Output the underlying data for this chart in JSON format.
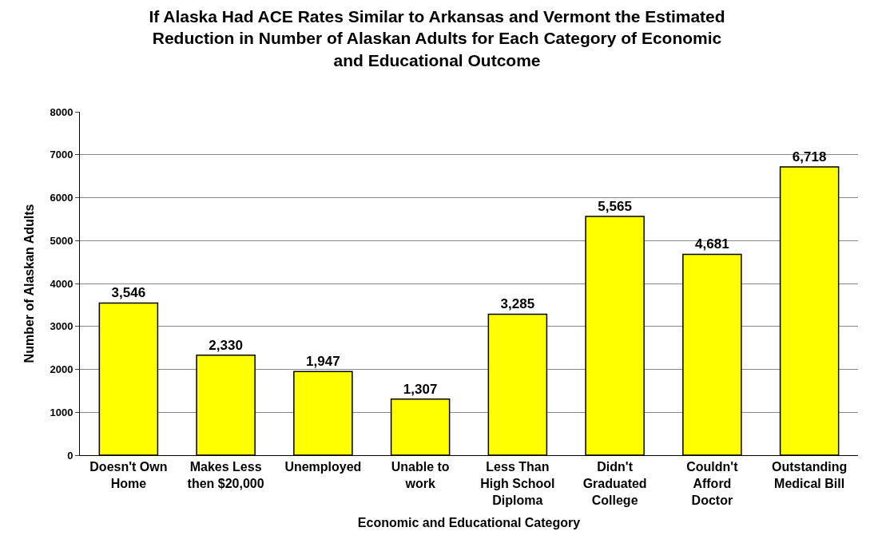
{
  "chart_data": {
    "type": "bar",
    "title": "If Alaska Had ACE Rates Similar to Arkansas and Vermont the Estimated Reduction in Number of Alaskan Adults for Each Category of Economic and Educational Outcome",
    "xlabel": "Economic and Educational Category",
    "ylabel": "Number of Alaskan Adults",
    "categories": [
      "Doesn't Own Home",
      "Makes Less then $20,000",
      "Unemployed",
      "Unable to work",
      "Less Than High School Diploma",
      "Didn't Graduated College",
      "Couldn't Afford Doctor",
      "Outstanding Medical Bill"
    ],
    "values": [
      3546,
      2330,
      1947,
      1307,
      3285,
      5565,
      4681,
      6718
    ],
    "value_labels": [
      "3,546",
      "2,330",
      "1,947",
      "1,307",
      "3,285",
      "5,565",
      "4,681",
      "6,718"
    ],
    "color": "#ffff00",
    "ylim": [
      0,
      8000
    ],
    "yticks": [
      0,
      1000,
      2000,
      3000,
      4000,
      5000,
      6000,
      7000,
      8000
    ],
    "grid": "y"
  }
}
